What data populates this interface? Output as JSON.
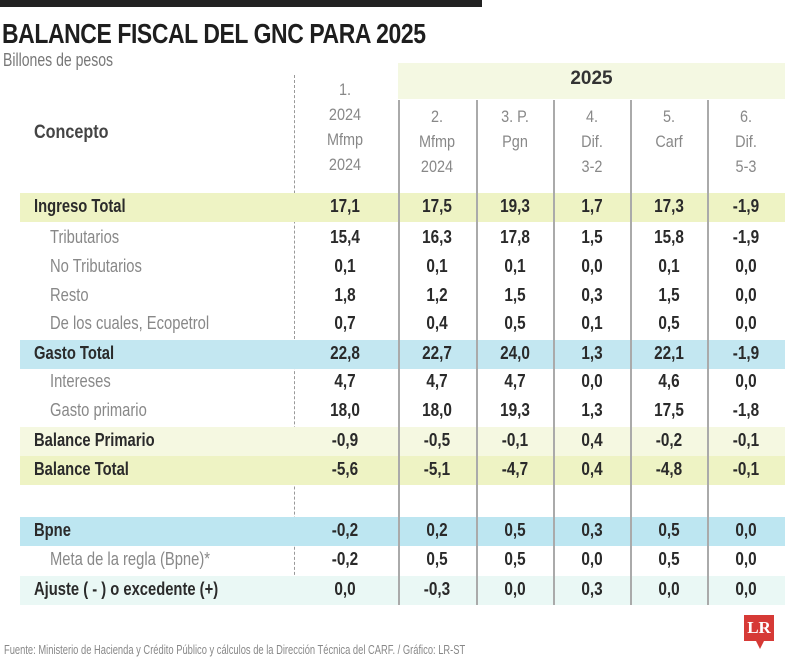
{
  "title": "BALANCE FISCAL DEL GNC PARA 2025",
  "subtitle": "Billones de pesos",
  "chart_data": {
    "type": "table",
    "group_header": "2025",
    "row_header": "Concepto",
    "columns": [
      "1.\n2024\nMfmp\n2024",
      "2.\nMfmp\n2024",
      "3. P.\nPgn",
      "4.\nDif.\n3-2",
      "5.\nCarf",
      "6.\nDif.\n5-3"
    ],
    "rows": [
      {
        "label": "Ingreso Total",
        "style": "main",
        "bg": "#eef3c4",
        "values": [
          "17,1",
          "17,5",
          "19,3",
          "1,7",
          "17,3",
          "-1,9"
        ]
      },
      {
        "label": "Tributarios",
        "style": "sub",
        "bg": "",
        "values": [
          "15,4",
          "16,3",
          "17,8",
          "1,5",
          "15,8",
          "-1,9"
        ]
      },
      {
        "label": "No Tributarios",
        "style": "sub",
        "bg": "",
        "values": [
          "0,1",
          "0,1",
          "0,1",
          "0,0",
          "0,1",
          "0,0"
        ]
      },
      {
        "label": "Resto",
        "style": "sub",
        "bg": "",
        "values": [
          "1,8",
          "1,2",
          "1,5",
          "0,3",
          "1,5",
          "0,0"
        ]
      },
      {
        "label": "De los cuales, Ecopetrol",
        "style": "sub",
        "bg": "",
        "values": [
          "0,7",
          "0,4",
          "0,5",
          "0,1",
          "0,5",
          "0,0"
        ]
      },
      {
        "label": "Gasto Total",
        "style": "main",
        "bg": "#c3e7f1",
        "values": [
          "22,8",
          "22,7",
          "24,0",
          "1,3",
          "22,1",
          "-1,9"
        ]
      },
      {
        "label": "Intereses",
        "style": "sub",
        "bg": "",
        "values": [
          "4,7",
          "4,7",
          "4,7",
          "0,0",
          "4,6",
          "0,0"
        ]
      },
      {
        "label": "Gasto primario",
        "style": "sub",
        "bg": "",
        "values": [
          "18,0",
          "18,0",
          "19,3",
          "1,3",
          "17,5",
          "-1,8"
        ]
      },
      {
        "label": "Balance Primario",
        "style": "main",
        "bg": "#f5f8e1",
        "values": [
          "-0,9",
          "-0,5",
          "-0,1",
          "0,4",
          "-0,2",
          "-0,1"
        ]
      },
      {
        "label": "Balance Total",
        "style": "main",
        "bg": "#eef3c4",
        "values": [
          "-5,6",
          "-5,1",
          "-4,7",
          "0,4",
          "-4,8",
          "-0,1"
        ]
      },
      {
        "label": "Bpne",
        "style": "main",
        "bg": "#bde6f1",
        "values": [
          "-0,2",
          "0,2",
          "0,5",
          "0,3",
          "0,5",
          "0,0"
        ]
      },
      {
        "label": "Meta de la regla (Bpne)*",
        "style": "sub",
        "bg": "",
        "values": [
          "-0,2",
          "0,5",
          "0,5",
          "0,0",
          "0,5",
          "0,0"
        ]
      },
      {
        "label": "Ajuste ( - ) o excedente (+)",
        "style": "main",
        "bg": "#eaf8f5",
        "values": [
          "0,0",
          "-0,3",
          "0,0",
          "0,3",
          "0,0",
          "0,0"
        ]
      }
    ]
  },
  "source": "Fuente: Ministerio de Hacienda y Crédito Público y cálculos de la Dirección Técnica del CARF. / Gráfico: LR-ST",
  "logo": "LR",
  "colors": {
    "accent_yellow": "#eef3c4",
    "accent_blue": "#c3e7f1",
    "logo_red": "#d63a36"
  }
}
